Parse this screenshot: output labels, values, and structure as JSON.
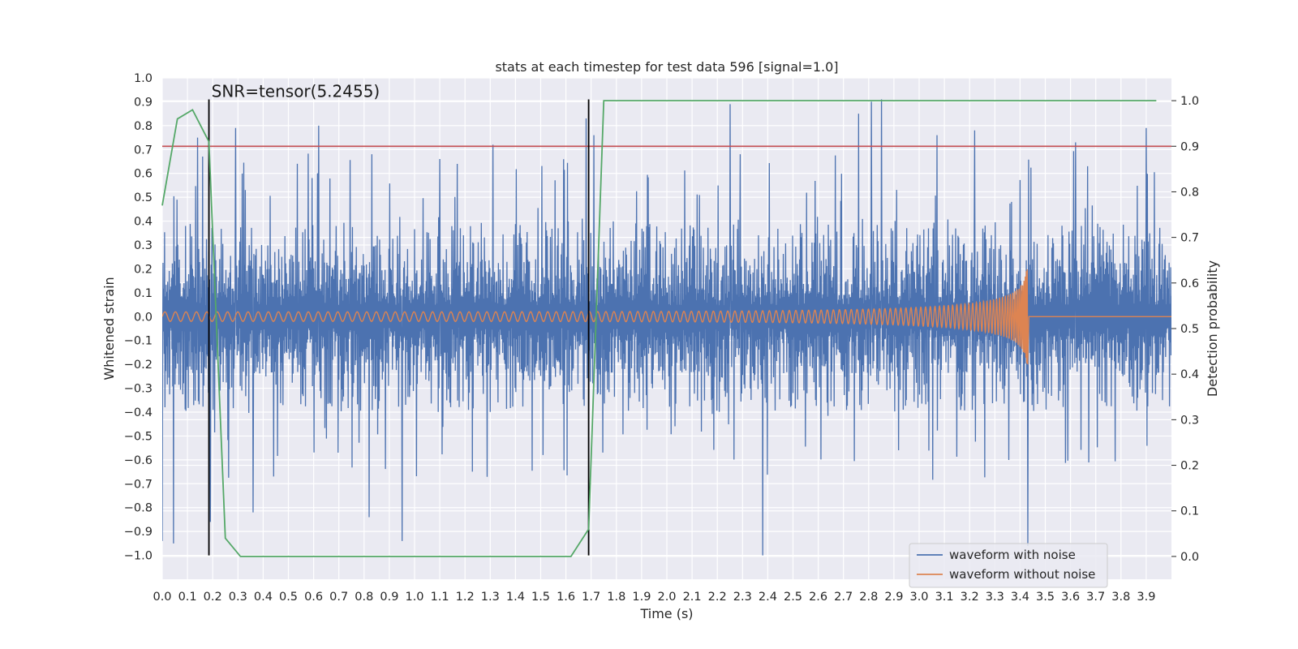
{
  "chart_data": {
    "type": "line",
    "title": "stats at each timestep for test data 596 [signal=1.0]",
    "xlabel": "Time (s)",
    "ylabel": "Whitened strain",
    "y2label": "Detection probability",
    "xlim": [
      0.0,
      4.0
    ],
    "ylim": [
      -1.1,
      1.0
    ],
    "y2lim": [
      -0.05,
      1.05
    ],
    "grid": true,
    "legend_location": "lower right",
    "x_ticks": [
      "0.0",
      "0.1",
      "0.2",
      "0.3",
      "0.4",
      "0.5",
      "0.6",
      "0.7",
      "0.8",
      "0.9",
      "1.0",
      "1.1",
      "1.2",
      "1.3",
      "1.4",
      "1.5",
      "1.6",
      "1.7",
      "1.8",
      "1.9",
      "2.0",
      "2.1",
      "2.2",
      "2.3",
      "2.4",
      "2.5",
      "2.6",
      "2.7",
      "2.8",
      "2.9",
      "3.0",
      "3.1",
      "3.2",
      "3.3",
      "3.4",
      "3.5",
      "3.6",
      "3.7",
      "3.8",
      "3.9"
    ],
    "y_ticks": [
      "1.0",
      "0.9",
      "0.8",
      "0.7",
      "0.6",
      "0.5",
      "0.4",
      "0.3",
      "0.2",
      "0.1",
      "0.0",
      "−0.1",
      "−0.2",
      "−0.3",
      "−0.4",
      "−0.5",
      "−0.6",
      "−0.7",
      "−0.8",
      "−0.9",
      "−1.0"
    ],
    "y2_ticks": [
      "1.0",
      "0.9",
      "0.8",
      "0.7",
      "0.6",
      "0.5",
      "0.4",
      "0.3",
      "0.2",
      "0.1",
      "0.0"
    ],
    "threshold": {
      "value": 0.9,
      "axis": "right",
      "color": "#c44e52"
    },
    "vertical_markers": [
      {
        "x": 0.185,
        "y_from": -1.0,
        "y_to": 0.91,
        "color": "#000000"
      },
      {
        "x": 1.69,
        "y_from": -1.0,
        "y_to": 0.91,
        "color": "#000000"
      }
    ],
    "annotation": {
      "text": "SNR=tensor(5.2455)",
      "x": 0.195,
      "y": 0.92
    },
    "series": [
      {
        "name": "waveform with noise",
        "color": "#4c72b0",
        "axis": "left",
        "description": "dense noisy whitened strain, mostly within ±0.5 with spikes to ±0.9",
        "envelope_typical": 0.5,
        "envelope_peak": 0.95,
        "peaks_x": [
          0.0,
          0.045,
          0.14,
          0.19,
          0.29,
          0.36,
          0.62,
          0.82,
          0.95,
          1.1,
          1.31,
          1.68,
          1.71,
          2.25,
          2.29,
          2.38,
          2.76,
          2.81,
          2.85,
          3.07,
          3.22,
          3.43,
          3.62,
          3.9
        ],
        "peaks_y": [
          -0.94,
          -0.95,
          0.75,
          -0.86,
          0.79,
          -0.82,
          0.8,
          -0.84,
          -0.94,
          0.66,
          0.72,
          0.83,
          0.76,
          0.89,
          0.68,
          -1.0,
          0.85,
          0.9,
          0.91,
          0.76,
          0.78,
          -0.96,
          0.73,
          0.79
        ]
      },
      {
        "name": "waveform without noise",
        "color": "#dd8452",
        "axis": "left",
        "description": "chirp signal, amplitude grows from 0.02 to 0.2 and frequency rises until merger near t=3.43s, flat afterwards",
        "chirp_start": 0.0,
        "chirp_merger": 3.43,
        "amplitude_start": 0.02,
        "amplitude_peak": 0.2,
        "cycles": 130
      },
      {
        "name": "detection probability",
        "color": "#55a868",
        "axis": "right",
        "x": [
          0.0,
          0.06,
          0.12,
          0.185,
          0.25,
          0.31,
          1.62,
          1.69,
          1.75,
          1.8,
          3.94
        ],
        "y": [
          0.77,
          0.96,
          0.98,
          0.91,
          0.04,
          0.0,
          0.0,
          0.06,
          1.0,
          1.0,
          1.0
        ]
      }
    ]
  }
}
